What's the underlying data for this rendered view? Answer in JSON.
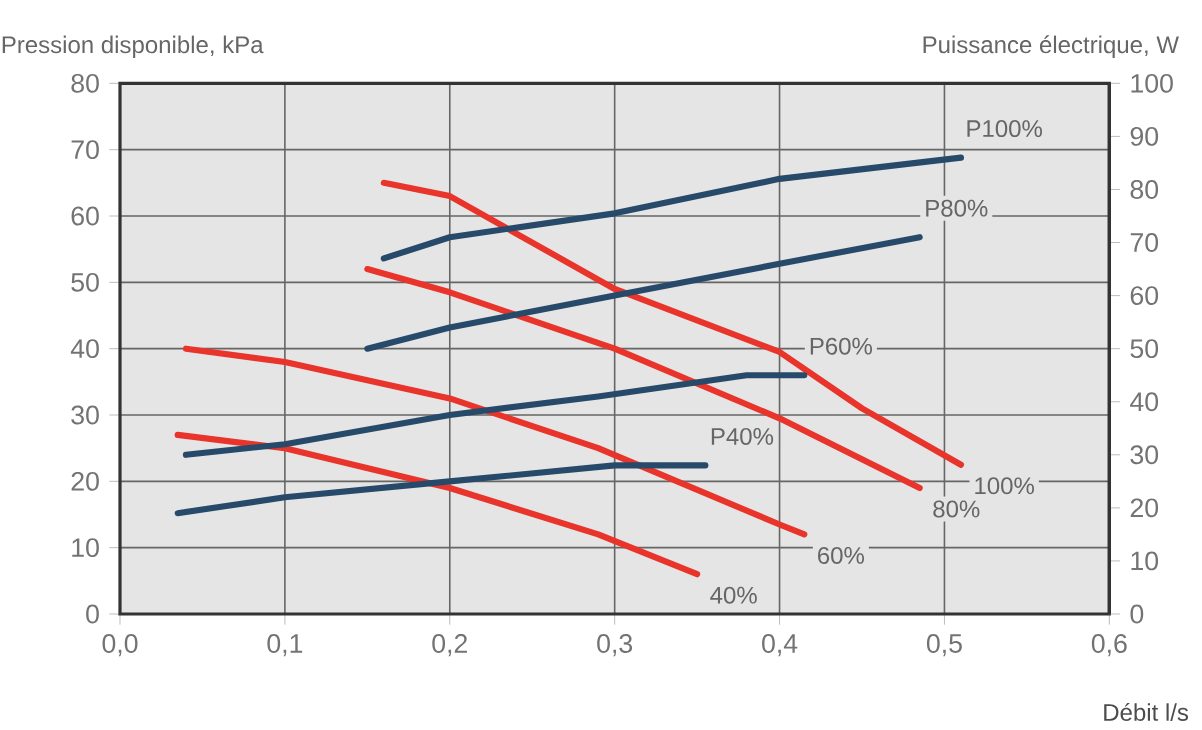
{
  "chart_data": {
    "type": "line",
    "xlabel": "Débit l/s",
    "ylabel": "Pression disponible, kPa",
    "y2label": "Puissance électrique, W",
    "grid": true,
    "xlim": [
      0,
      0.6
    ],
    "xticks": [
      {
        "value": 0,
        "label": "0,0"
      },
      {
        "value": 0.1,
        "label": "0,1"
      },
      {
        "value": 0.2,
        "label": "0,2"
      },
      {
        "value": 0.3,
        "label": "0,3"
      },
      {
        "value": 0.4,
        "label": "0,4"
      },
      {
        "value": 0.5,
        "label": "0,5"
      },
      {
        "value": 0.6,
        "label": "0,6"
      }
    ],
    "ylim": [
      0,
      80
    ],
    "yticks": [
      0,
      10,
      20,
      30,
      40,
      50,
      60,
      70,
      80
    ],
    "y2lim": [
      0,
      100
    ],
    "y2ticks": [
      0,
      10,
      20,
      30,
      40,
      50,
      60,
      70,
      80,
      90,
      100
    ],
    "series": [
      {
        "name": "100%",
        "color": "#e8342a",
        "x": [
          0.16,
          0.2,
          0.3,
          0.4,
          0.45,
          0.51
        ],
        "values": [
          65,
          63,
          49,
          39.5,
          31,
          22.5
        ]
      },
      {
        "name": "80%",
        "color": "#e8342a",
        "x": [
          0.15,
          0.2,
          0.3,
          0.4,
          0.485
        ],
        "values": [
          52,
          48.5,
          40,
          29.5,
          19
        ]
      },
      {
        "name": "60%",
        "color": "#e8342a",
        "x": [
          0.04,
          0.1,
          0.2,
          0.29,
          0.4,
          0.415
        ],
        "values": [
          40,
          38,
          32.5,
          25,
          13.5,
          12
        ]
      },
      {
        "name": "40%",
        "color": "#e8342a",
        "x": [
          0.035,
          0.1,
          0.2,
          0.29,
          0.35
        ],
        "values": [
          27,
          25,
          19,
          12,
          6
        ]
      },
      {
        "name": "P100%",
        "color": "#274a6a",
        "axis": "y2",
        "x": [
          0.16,
          0.2,
          0.3,
          0.4,
          0.51
        ],
        "values": [
          67,
          71,
          75.5,
          82,
          86
        ]
      },
      {
        "name": "P80%",
        "color": "#274a6a",
        "axis": "y2",
        "x": [
          0.15,
          0.2,
          0.3,
          0.4,
          0.485
        ],
        "values": [
          50,
          54,
          60,
          66,
          71
        ]
      },
      {
        "name": "P60%",
        "color": "#274a6a",
        "axis": "y2",
        "x": [
          0.04,
          0.1,
          0.2,
          0.29,
          0.38,
          0.415
        ],
        "values": [
          30,
          32,
          37.5,
          41,
          45,
          45
        ]
      },
      {
        "name": "P40%",
        "color": "#274a6a",
        "axis": "y2",
        "x": [
          0.035,
          0.1,
          0.2,
          0.3,
          0.355
        ],
        "values": [
          19,
          22,
          25,
          28,
          28
        ]
      }
    ]
  }
}
